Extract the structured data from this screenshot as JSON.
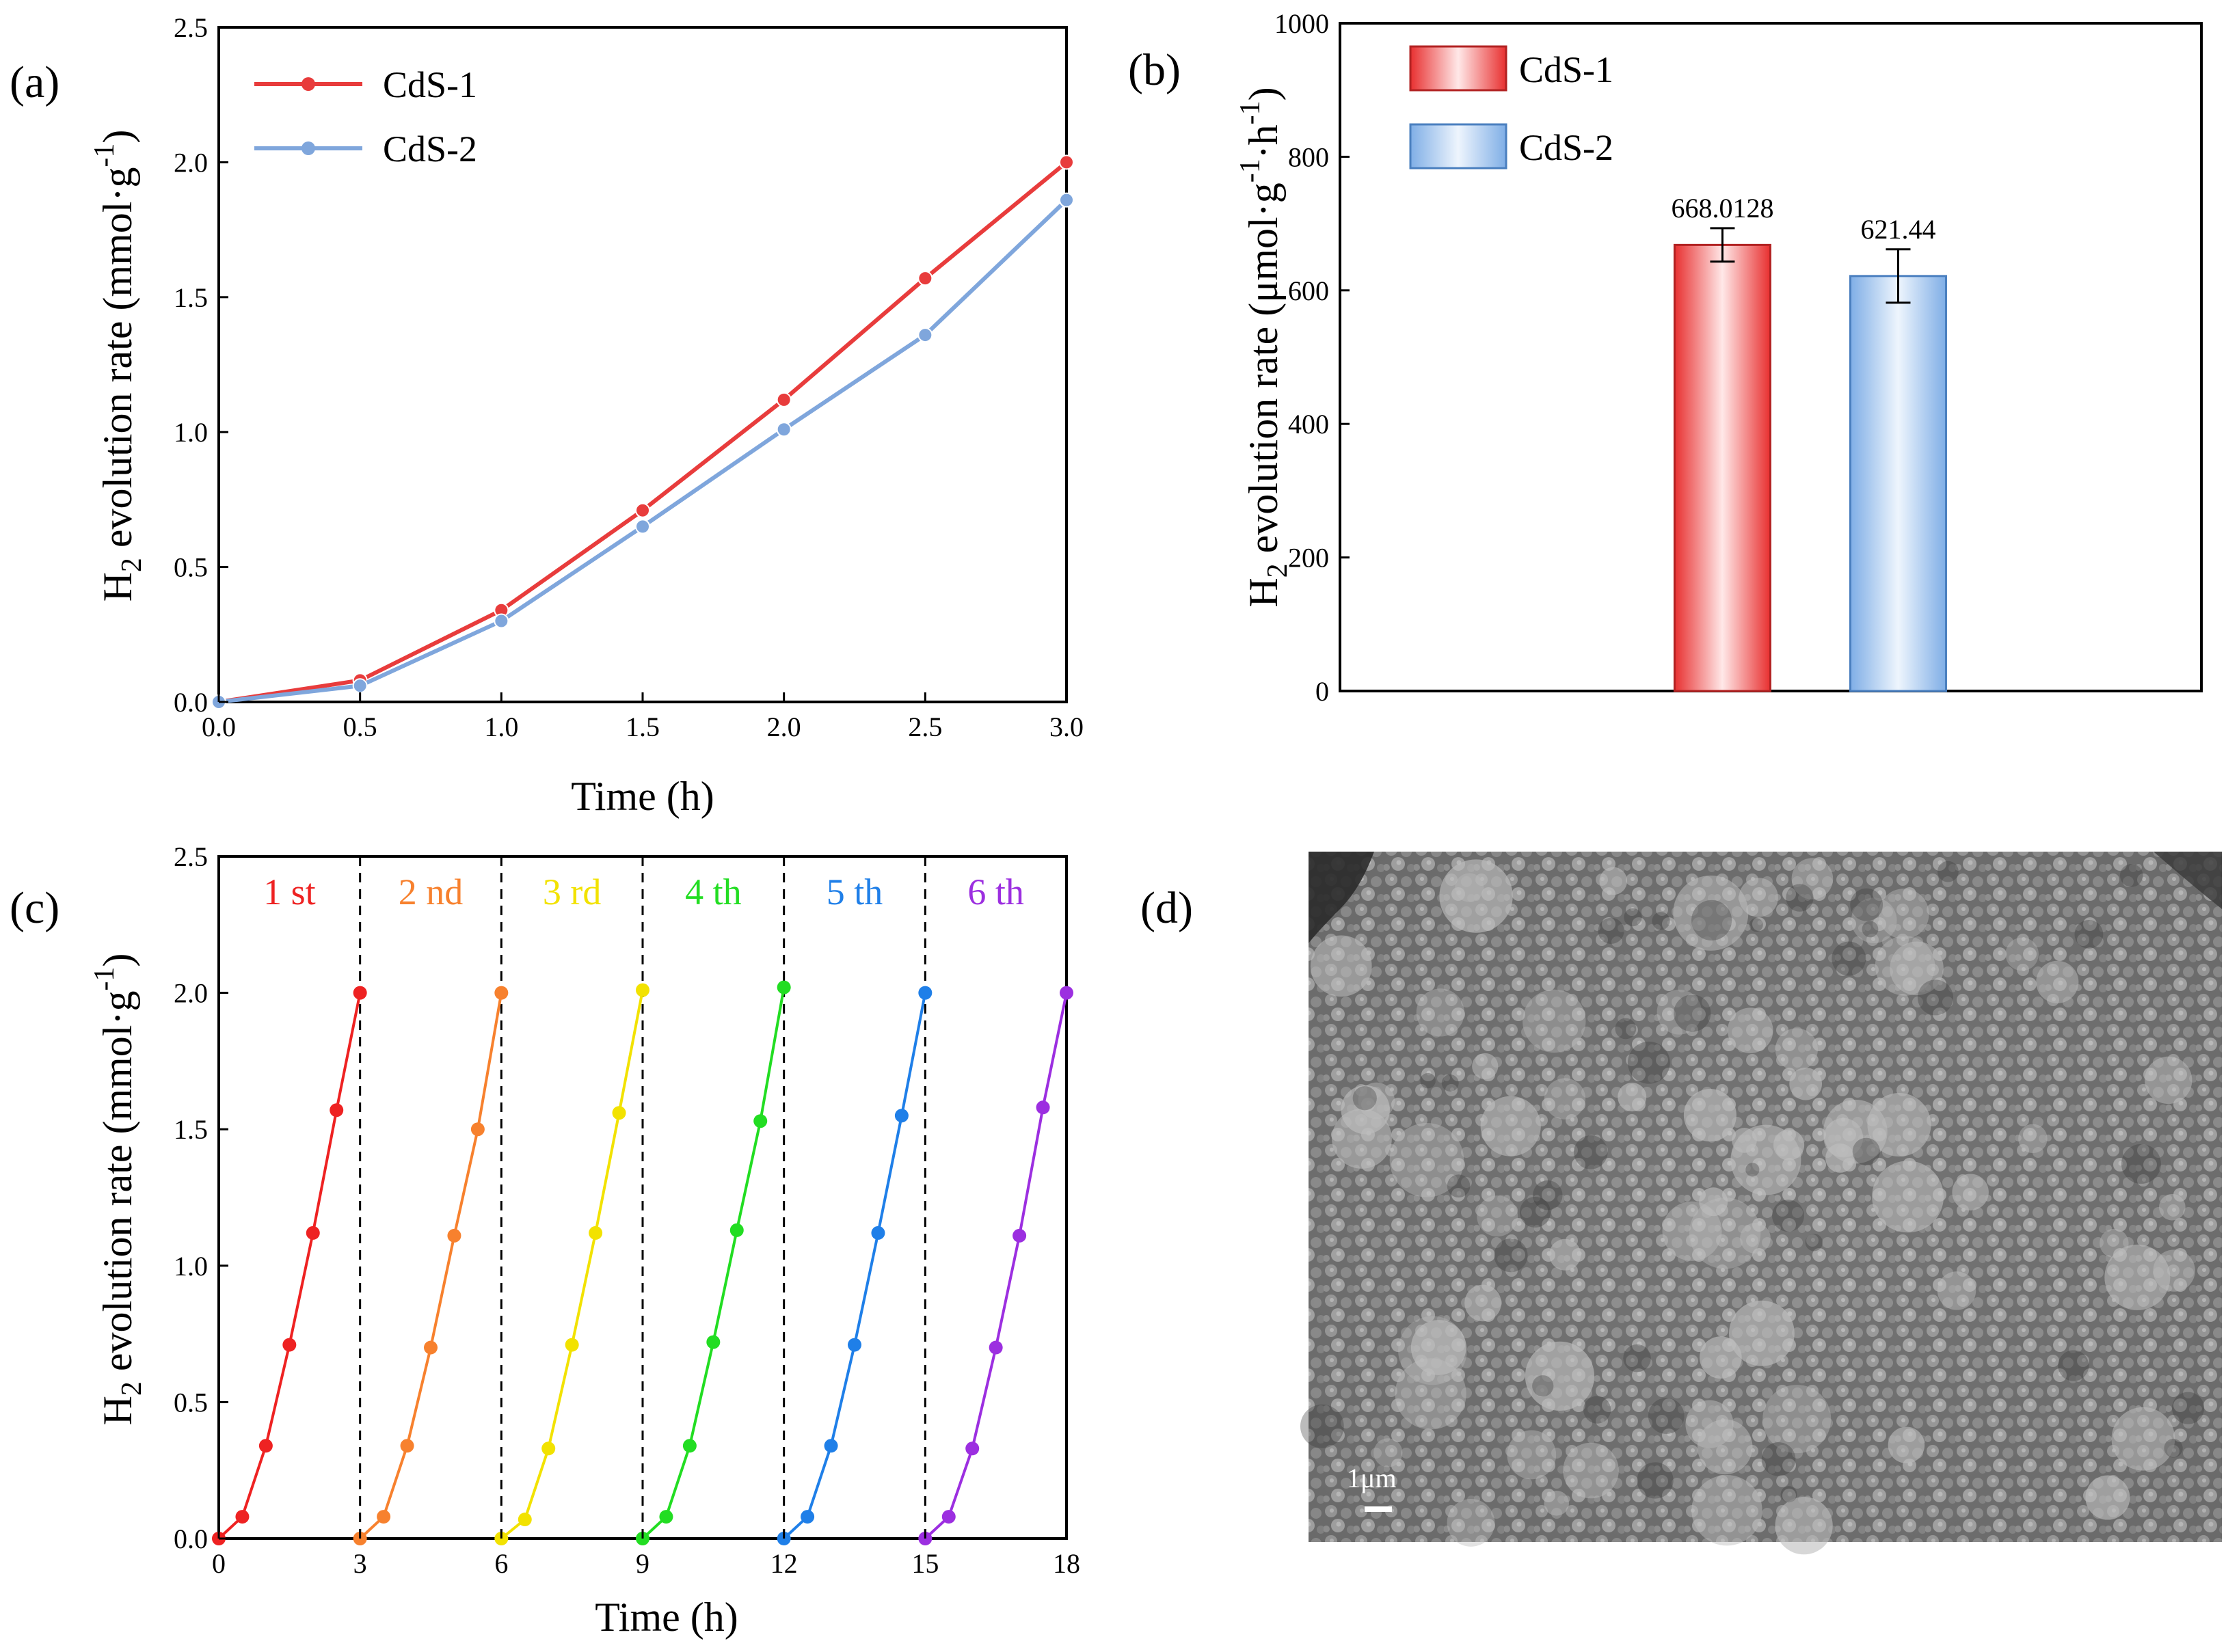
{
  "panels": {
    "a": "(a)",
    "b": "(b)",
    "c": "(c)",
    "d": "(d)"
  },
  "chart_data": [
    {
      "id": "a",
      "type": "line",
      "xlabel": "Time (h)",
      "ylabel_main": "H",
      "ylabel_sub": "2",
      "ylabel_rest": " evolution rate (mmol·g",
      "ylabel_sup": "-1",
      "ylabel_end": ")",
      "xlim": [
        0,
        3
      ],
      "ylim": [
        0,
        2.5
      ],
      "xticks": [
        "0.0",
        "0.5",
        "1.0",
        "1.5",
        "2.0",
        "2.5",
        "3.0"
      ],
      "yticks": [
        "0.0",
        "0.5",
        "1.0",
        "1.5",
        "2.0",
        "2.5"
      ],
      "grid": false,
      "legend_position": "top-left",
      "series": [
        {
          "name": "CdS-1",
          "color": "#e83c3c",
          "x": [
            0,
            0.5,
            1.0,
            1.5,
            2.0,
            2.5,
            3.0
          ],
          "y": [
            0,
            0.08,
            0.34,
            0.71,
            1.12,
            1.57,
            2.0
          ]
        },
        {
          "name": "CdS-2",
          "color": "#7fa6dc",
          "x": [
            0,
            0.5,
            1.0,
            1.5,
            2.0,
            2.5,
            3.0
          ],
          "y": [
            0,
            0.06,
            0.3,
            0.65,
            1.01,
            1.36,
            1.86
          ]
        }
      ]
    },
    {
      "id": "b",
      "type": "bar",
      "ylabel_main": "H",
      "ylabel_sub": "2",
      "ylabel_rest": " evolution rate (μmol·g",
      "ylabel_sup1": "-1",
      "ylabel_mid": "·h",
      "ylabel_sup2": "-1",
      "ylabel_end": ")",
      "ylim": [
        0,
        1000
      ],
      "yticks": [
        "0",
        "200",
        "400",
        "600",
        "800",
        "1000"
      ],
      "legend_position": "top-left",
      "categories": [
        "CdS-1",
        "CdS-2"
      ],
      "values": [
        668.0128,
        621.44
      ],
      "errors": [
        25,
        40
      ],
      "value_labels": [
        "668.0128",
        "621.44"
      ],
      "colors": [
        "#ef4848",
        "#8db6e6"
      ]
    },
    {
      "id": "c",
      "type": "line",
      "xlabel": "Time (h)",
      "ylabel_main": "H",
      "ylabel_sub": "2",
      "ylabel_rest": " evolution rate (mmol·g",
      "ylabel_sup": "-1",
      "ylabel_end": ")",
      "xlim": [
        0,
        18
      ],
      "ylim": [
        0,
        2.5
      ],
      "xticks": [
        "0",
        "3",
        "6",
        "9",
        "12",
        "15",
        "18"
      ],
      "yticks": [
        "0.0",
        "0.5",
        "1.0",
        "1.5",
        "2.0",
        "2.5"
      ],
      "dividers": [
        3,
        6,
        9,
        12,
        15
      ],
      "cycles": [
        {
          "label": "1 st",
          "color": "#ee2222",
          "x": [
            0,
            0.5,
            1.0,
            1.5,
            2.0,
            2.5,
            3.0
          ],
          "y": [
            0,
            0.08,
            0.34,
            0.71,
            1.12,
            1.57,
            2.0
          ]
        },
        {
          "label": "2 nd",
          "color": "#f7812e",
          "x": [
            3,
            3.5,
            4.0,
            4.5,
            5.0,
            5.5,
            6.0
          ],
          "y": [
            0,
            0.08,
            0.34,
            0.7,
            1.11,
            1.5,
            2.0
          ]
        },
        {
          "label": "3 rd",
          "color": "#f2e200",
          "x": [
            6,
            6.5,
            7.0,
            7.5,
            8.0,
            8.5,
            9.0
          ],
          "y": [
            0,
            0.07,
            0.33,
            0.71,
            1.12,
            1.56,
            2.01
          ]
        },
        {
          "label": "4 th",
          "color": "#22dd22",
          "x": [
            9,
            9.5,
            10.0,
            10.5,
            11.0,
            11.5,
            12.0
          ],
          "y": [
            0,
            0.08,
            0.34,
            0.72,
            1.13,
            1.53,
            2.02
          ]
        },
        {
          "label": "5 th",
          "color": "#1f7fe8",
          "x": [
            12,
            12.5,
            13.0,
            13.5,
            14.0,
            14.5,
            15.0
          ],
          "y": [
            0,
            0.08,
            0.34,
            0.71,
            1.12,
            1.55,
            2.0
          ]
        },
        {
          "label": "6 th",
          "color": "#9c2fe0",
          "x": [
            15,
            15.5,
            16.0,
            16.5,
            17.0,
            17.5,
            18.0
          ],
          "y": [
            0,
            0.08,
            0.33,
            0.7,
            1.11,
            1.58,
            2.0
          ]
        }
      ]
    }
  ],
  "sem": {
    "scale_label": "1μm"
  }
}
